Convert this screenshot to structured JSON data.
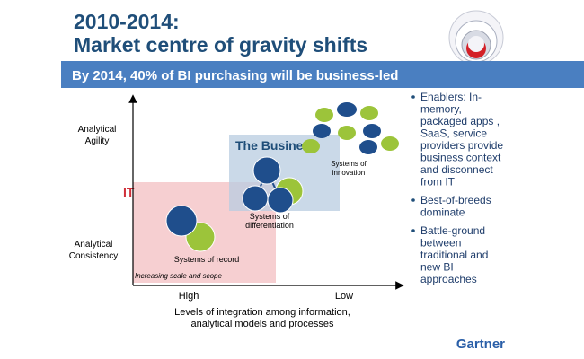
{
  "header": {
    "title_lines": [
      "2010-2014:",
      "Market centre of gravity shifts"
    ],
    "banner": "By 2014, 40% of BI purchasing will be business-led"
  },
  "diagram": {
    "y_axis_labels": {
      "top": [
        "Analytical",
        "Agility"
      ],
      "bottom": [
        "Analytical",
        "Consistency"
      ]
    },
    "regions": [
      {
        "label": "IT"
      },
      {
        "label": "The Business"
      }
    ],
    "clusters": [
      {
        "label": [
          "Systems of record"
        ]
      },
      {
        "label": [
          "Systems of",
          "differentiation"
        ]
      },
      {
        "label": [
          "Systems of",
          "innovation"
        ]
      }
    ],
    "arrow_label": "Increasing scale and scope",
    "x_axis_labels": [
      "High",
      "Low"
    ],
    "x_axis_title": [
      "Levels of integration among information,",
      "analytical models and processes"
    ]
  },
  "bullets": [
    [
      "Enablers: In-",
      "memory,",
      "packaged apps ,",
      "SaaS, service",
      "providers provide",
      "business context",
      "and disconnect",
      "from IT"
    ],
    [
      "Best-of-breeds",
      "dominate"
    ],
    [
      "Battle-ground",
      "between",
      "traditional and",
      "new BI",
      "approaches"
    ]
  ],
  "footer": {
    "logo": "Gartner"
  }
}
